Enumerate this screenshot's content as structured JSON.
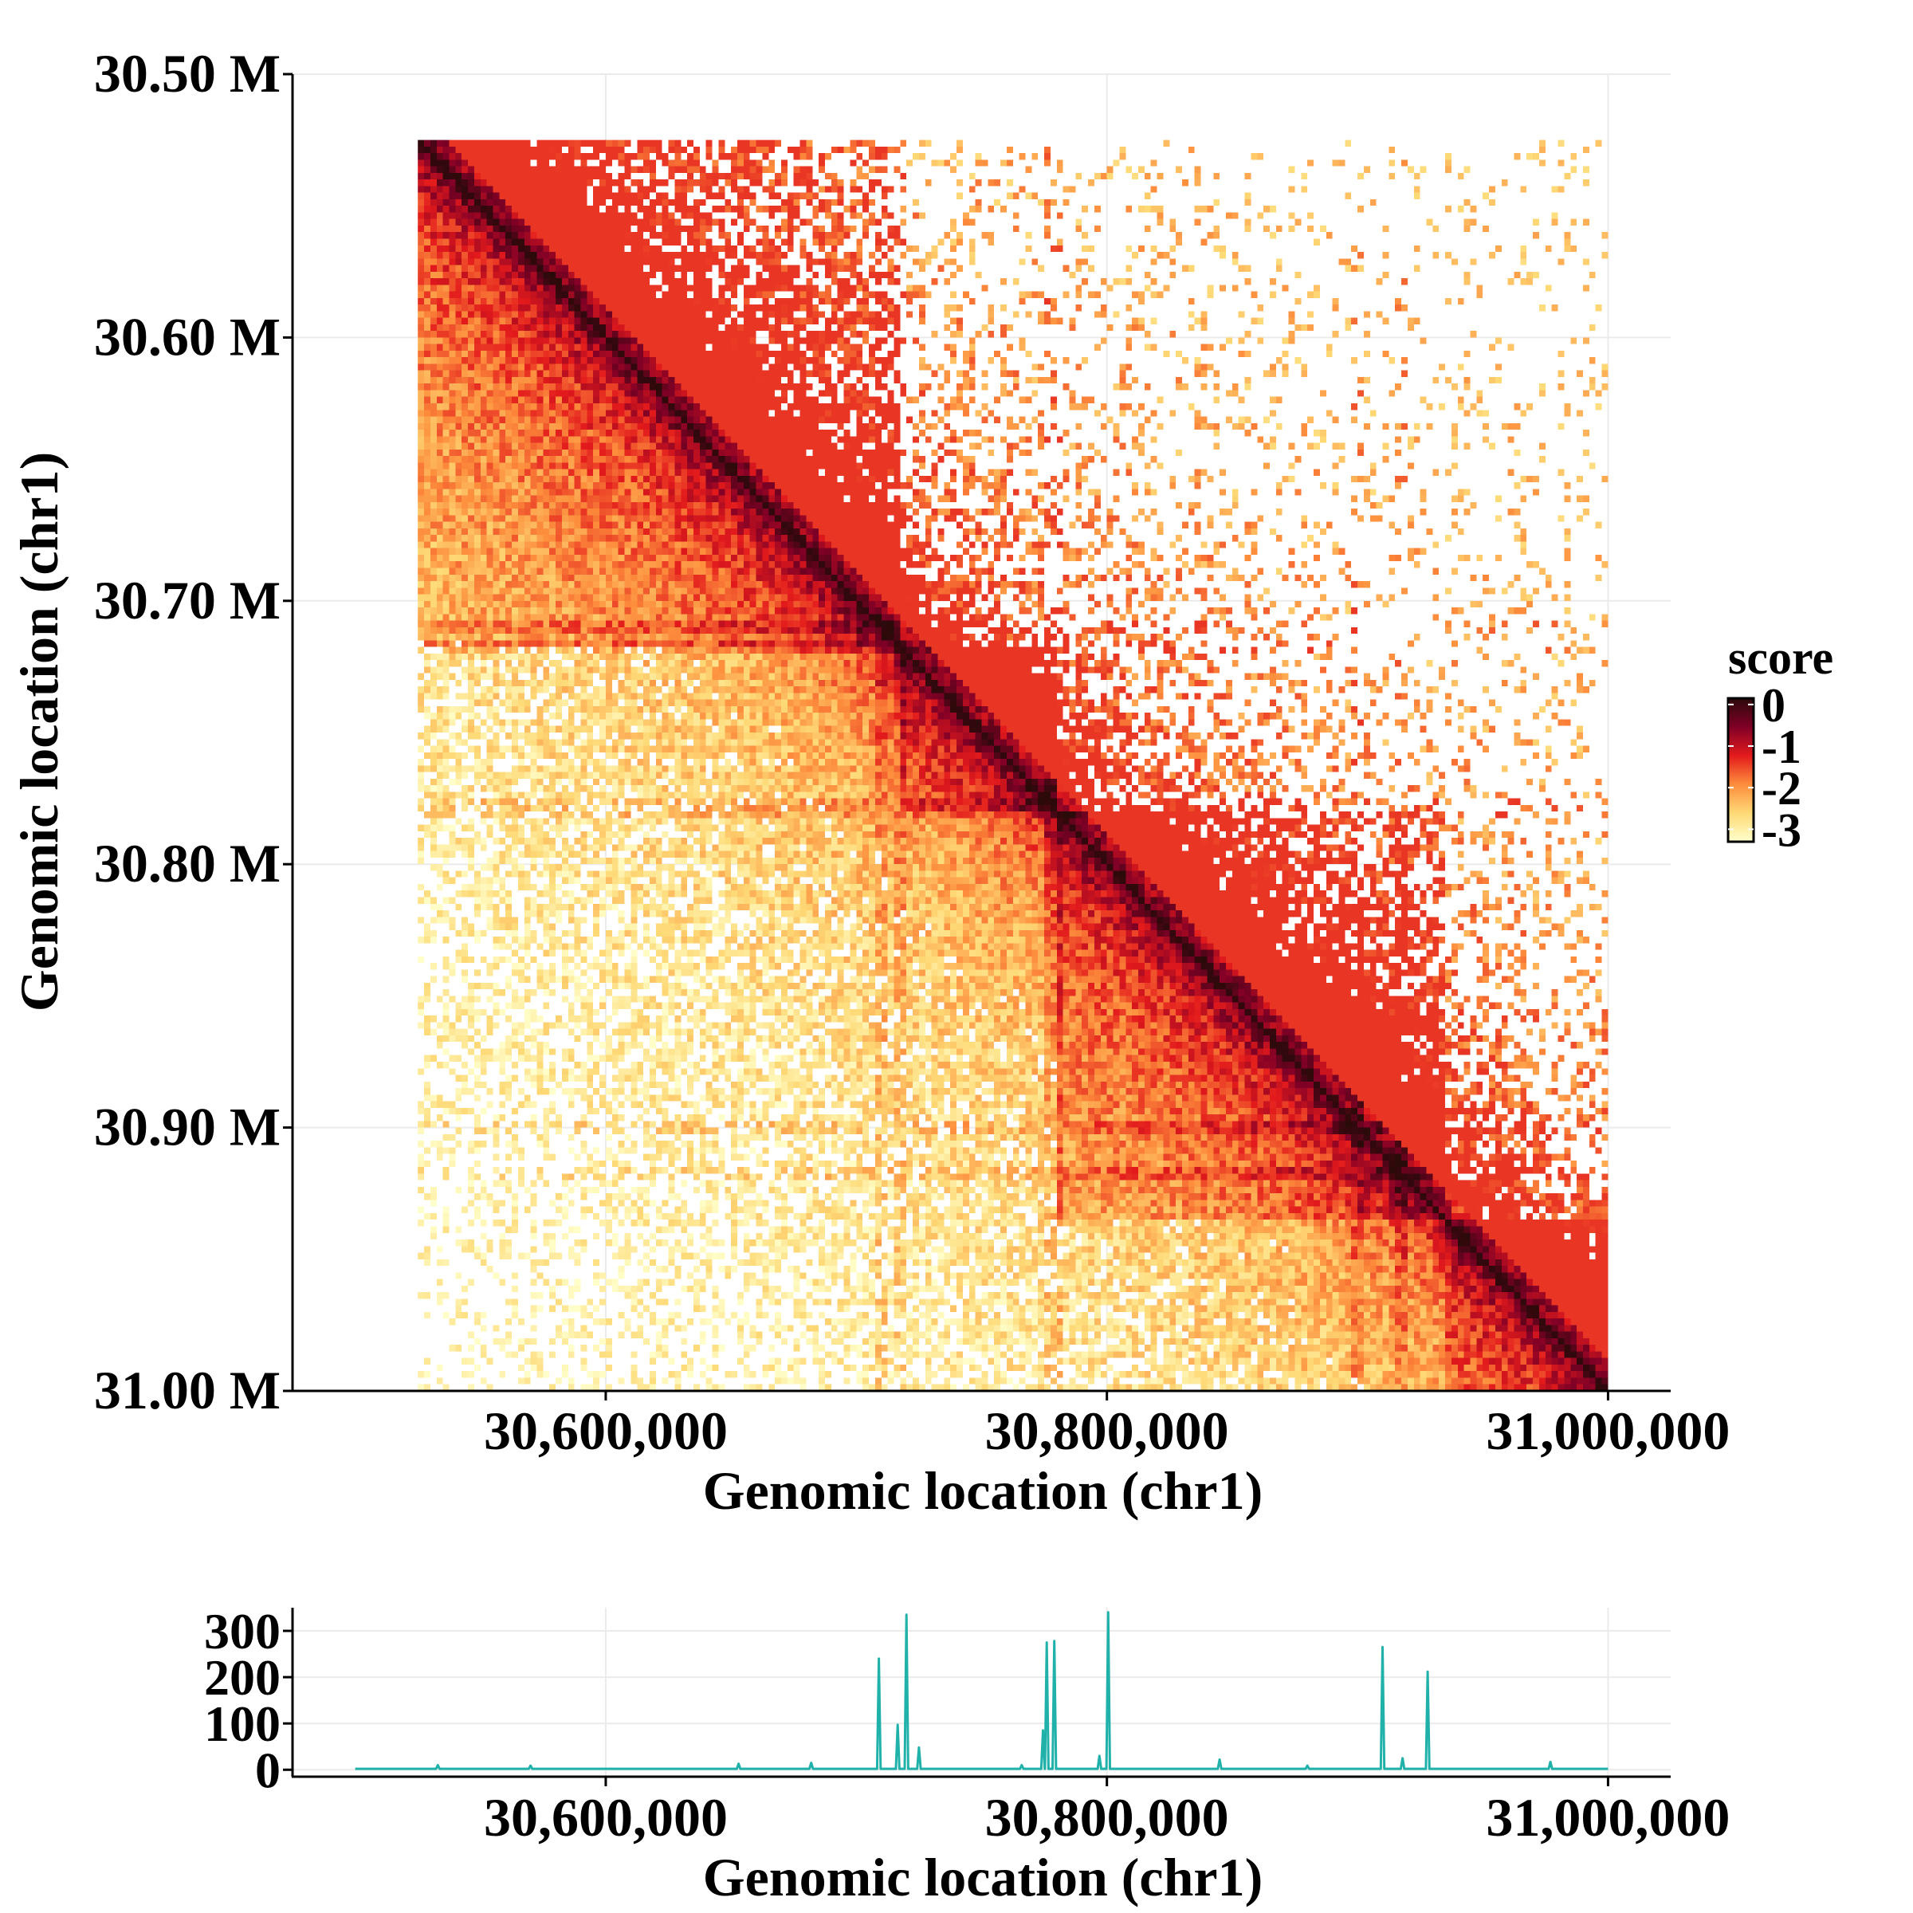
{
  "chart_data": [
    {
      "type": "heatmap",
      "title": "",
      "xlabel": "Genomic location (chr1)",
      "ylabel": "Genomic location (chr1)",
      "xlim": [
        30475000,
        31025000
      ],
      "ylim": [
        30500000,
        31000000
      ],
      "data_range": [
        30525000,
        31000000
      ],
      "x_ticks": [
        30600000,
        30800000,
        31000000
      ],
      "x_tick_labels": [
        "30,600,000",
        "30,800,000",
        "31,000,000"
      ],
      "y_ticks": [
        30500000,
        30600000,
        30700000,
        30800000,
        30900000,
        31000000
      ],
      "y_tick_labels": [
        "30.50 M",
        "30.60 M",
        "30.70 M",
        "30.80 M",
        "30.90 M",
        "31.00 M"
      ],
      "grid": true,
      "domains": [
        {
          "start": 30525000,
          "end": 30718000
        },
        {
          "start": 30718000,
          "end": 30780000
        },
        {
          "start": 30780000,
          "end": 30935000
        },
        {
          "start": 30935000,
          "end": 31000000
        }
      ],
      "stripes": [
        30710000,
        30718000,
        30778000,
        30780000,
        30900000,
        30918000
      ],
      "color_scale": {
        "title": "score",
        "min": -3.3,
        "max": 0.15,
        "ticks": [
          0,
          -1,
          -2,
          -3
        ],
        "tick_labels": [
          "0",
          "-1",
          "-2",
          "-3"
        ],
        "colors": [
          "#ffffcc",
          "#fed976",
          "#fd8d3c",
          "#e31a1c",
          "#800026",
          "#2b0a0a"
        ],
        "legend_position": "right"
      }
    },
    {
      "type": "line",
      "title": "",
      "xlabel": "Genomic location (chr1)",
      "ylabel": "",
      "xlim": [
        30475000,
        31025000
      ],
      "ylim": [
        -15,
        350
      ],
      "x_ticks": [
        30600000,
        30800000,
        31000000
      ],
      "x_tick_labels": [
        "30,600,000",
        "30,800,000",
        "31,000,000"
      ],
      "y_ticks": [
        0,
        100,
        200,
        300
      ],
      "y_tick_labels": [
        "0",
        "100",
        "200",
        "300"
      ],
      "color": "#20b2aa",
      "grid": true,
      "range": [
        30500000,
        31000000
      ],
      "baseline": 2,
      "peaks": [
        {
          "x": 30533000,
          "y": 10
        },
        {
          "x": 30570000,
          "y": 9
        },
        {
          "x": 30653000,
          "y": 13
        },
        {
          "x": 30682000,
          "y": 15
        },
        {
          "x": 30709000,
          "y": 240
        },
        {
          "x": 30716500,
          "y": 97
        },
        {
          "x": 30720000,
          "y": 335
        },
        {
          "x": 30725000,
          "y": 48
        },
        {
          "x": 30766000,
          "y": 10
        },
        {
          "x": 30774500,
          "y": 85
        },
        {
          "x": 30776000,
          "y": 275
        },
        {
          "x": 30779000,
          "y": 278
        },
        {
          "x": 30797000,
          "y": 30
        },
        {
          "x": 30800500,
          "y": 340
        },
        {
          "x": 30845000,
          "y": 22
        },
        {
          "x": 30880000,
          "y": 9
        },
        {
          "x": 30910000,
          "y": 265
        },
        {
          "x": 30918000,
          "y": 25
        },
        {
          "x": 30928000,
          "y": 212
        },
        {
          "x": 30977000,
          "y": 17
        }
      ]
    }
  ]
}
